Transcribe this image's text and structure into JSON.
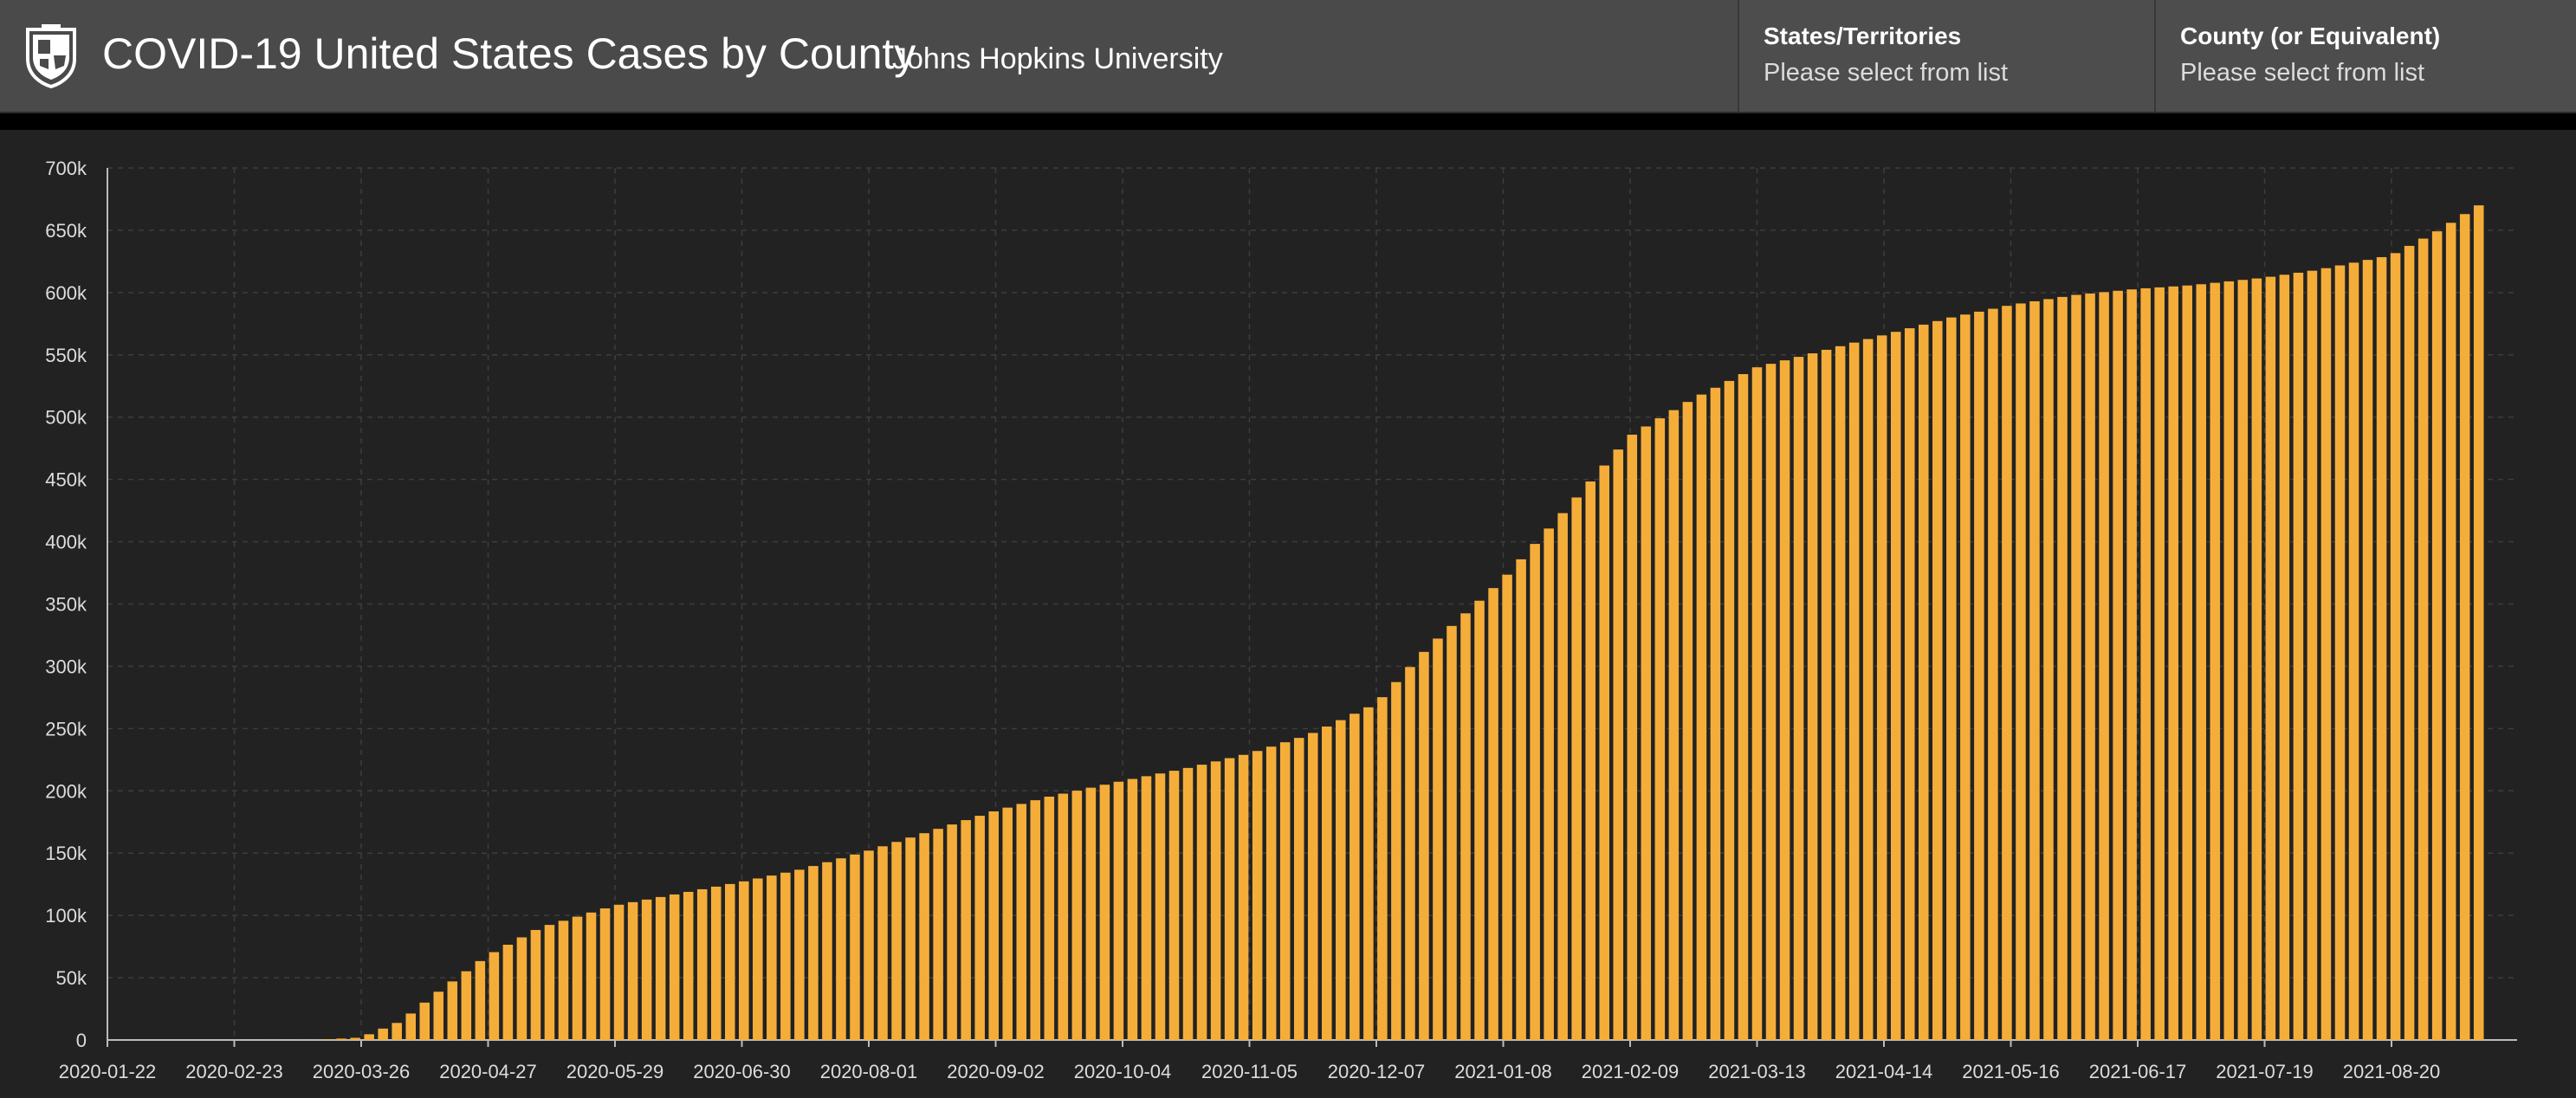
{
  "header": {
    "title": "COVID-19 United States Cases by County",
    "subtitle": "Johns Hopkins University",
    "logo_icon": "university-shield-icon"
  },
  "selectors": {
    "states": {
      "label": "States/Territories",
      "value": "Please select from list"
    },
    "county": {
      "label": "County (or Equivalent)",
      "value": "Please select from list"
    }
  },
  "colors": {
    "bar": "#f5ad3a",
    "background": "#222222",
    "header": "#4a4a4a",
    "grid": "#3d3d3d"
  },
  "chart_data": {
    "type": "bar",
    "title": "",
    "xlabel": "",
    "ylabel": "",
    "ylim": [
      0,
      700000
    ],
    "yticks": [
      "0",
      "50k",
      "100k",
      "150k",
      "200k",
      "250k",
      "300k",
      "350k",
      "400k",
      "450k",
      "500k",
      "550k",
      "600k",
      "650k",
      "700k"
    ],
    "xticks": [
      "2020-01-22",
      "2020-02-23",
      "2020-03-26",
      "2020-04-27",
      "2020-05-29",
      "2020-06-30",
      "2020-08-01",
      "2020-09-02",
      "2020-10-04",
      "2020-11-05",
      "2020-12-07",
      "2021-01-08",
      "2021-02-09",
      "2021-03-13",
      "2021-04-14",
      "2021-05-16",
      "2021-06-17",
      "2021-07-19",
      "2021-08-20"
    ],
    "grid": true,
    "series": [
      {
        "x": [
          "2020-01-22",
          "2020-03-01",
          "2020-03-15",
          "2020-03-26",
          "2020-04-05",
          "2020-04-15",
          "2020-04-27",
          "2020-05-10",
          "2020-05-29",
          "2020-06-15",
          "2020-06-30",
          "2020-07-15",
          "2020-08-01",
          "2020-08-15",
          "2020-09-02",
          "2020-09-15",
          "2020-10-04",
          "2020-10-20",
          "2020-11-05",
          "2020-11-20",
          "2020-12-07",
          "2020-12-20",
          "2021-01-08",
          "2021-01-25",
          "2021-02-09",
          "2021-02-25",
          "2021-03-13",
          "2021-03-28",
          "2021-04-14",
          "2021-05-01",
          "2021-05-16",
          "2021-06-01",
          "2021-06-17",
          "2021-07-01",
          "2021-07-19",
          "2021-08-01",
          "2021-08-20",
          "2021-09-01",
          "2021-09-12"
        ],
        "values": [
          0,
          0,
          100,
          2000,
          15000,
          40000,
          68000,
          90000,
          108000,
          118000,
          127000,
          137000,
          152000,
          166000,
          184000,
          195000,
          208000,
          218000,
          230000,
          245000,
          270000,
          315000,
          370000,
          430000,
          485000,
          515000,
          540000,
          552000,
          566000,
          580000,
          590000,
          598000,
          603000,
          606000,
          612000,
          618000,
          630000,
          650000,
          672000
        ]
      }
    ]
  }
}
